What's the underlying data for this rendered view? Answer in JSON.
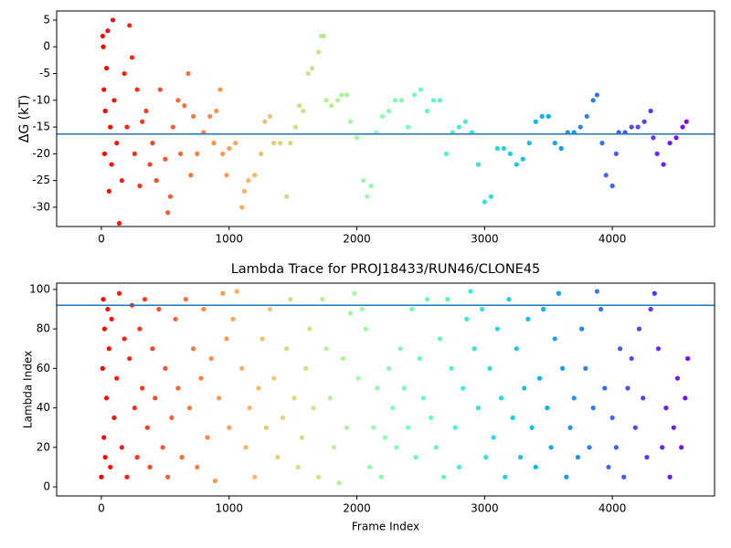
{
  "chart_data": [
    {
      "type": "scatter",
      "ylabel": "ΔG (kT)",
      "colormap": "rainbow_r",
      "xlim": [
        -350,
        4800
      ],
      "xticks": [
        0,
        1000,
        2000,
        3000,
        4000
      ],
      "ylim": [
        -33.6,
        6.7
      ],
      "yticks": [
        -30,
        -25,
        -20,
        -15,
        -10,
        -5,
        0,
        5
      ],
      "hline": -16.3,
      "hline_color": "#1f77b4",
      "x": [
        10,
        15,
        20,
        25,
        30,
        40,
        50,
        60,
        70,
        80,
        90,
        100,
        120,
        140,
        160,
        180,
        200,
        220,
        240,
        260,
        280,
        300,
        320,
        350,
        380,
        400,
        430,
        460,
        500,
        520,
        540,
        560,
        600,
        620,
        650,
        680,
        700,
        720,
        750,
        800,
        850,
        880,
        900,
        930,
        950,
        980,
        1000,
        1050,
        1100,
        1120,
        1150,
        1200,
        1250,
        1280,
        1320,
        1350,
        1400,
        1450,
        1480,
        1520,
        1550,
        1580,
        1620,
        1650,
        1700,
        1720,
        1740,
        1760,
        1800,
        1850,
        1880,
        1920,
        1950,
        2000,
        2050,
        2080,
        2110,
        2150,
        2200,
        2250,
        2300,
        2350,
        2400,
        2450,
        2500,
        2550,
        2600,
        2650,
        2700,
        2750,
        2800,
        2850,
        2900,
        2950,
        3000,
        3050,
        3100,
        3150,
        3200,
        3250,
        3300,
        3350,
        3400,
        3450,
        3500,
        3550,
        3600,
        3650,
        3700,
        3750,
        3800,
        3850,
        3880,
        3920,
        3950,
        4000,
        4030,
        4050,
        4100,
        4150,
        4200,
        4250,
        4300,
        4320,
        4350,
        4400,
        4450,
        4500,
        4550,
        4580
      ],
      "values": [
        2,
        0,
        -8,
        -20,
        -12,
        -4,
        3,
        -27,
        -15,
        -22,
        5,
        -10,
        -18,
        -33,
        -25,
        -5,
        -15,
        4,
        -2,
        -20,
        -8,
        -26,
        -14,
        -12,
        -22,
        -18,
        -25,
        -8,
        -21,
        -31,
        -28,
        -15,
        -10,
        -20,
        -11,
        -5,
        -24,
        -13,
        -20,
        -16,
        -13,
        -18,
        -12,
        -8,
        -20,
        -24,
        -19,
        -18,
        -30,
        -27,
        -25,
        -24,
        -20,
        -14,
        -13,
        -18,
        -18,
        -28,
        -18,
        -15,
        -11,
        -12,
        -5,
        -4,
        -1,
        2,
        2,
        -10,
        -11,
        -10,
        -9,
        -9,
        -14,
        -17,
        -25,
        -28,
        -26,
        -16,
        -13,
        -12,
        -10,
        -10,
        -15,
        -9,
        -8,
        -12,
        -10,
        -10,
        -20,
        -16,
        -15,
        -14,
        -16,
        -22,
        -29,
        -28,
        -19,
        -19,
        -20,
        -22,
        -21,
        -18,
        -14,
        -13,
        -13,
        -18,
        -19,
        -16,
        -16,
        -15,
        -13,
        -10,
        -9,
        -18,
        -24,
        -26,
        -20,
        -16,
        -16,
        -15,
        -15,
        -14,
        -12,
        -17,
        -20,
        -22,
        -18,
        -17,
        -15,
        -14
      ]
    },
    {
      "type": "scatter",
      "title": "Lambda Trace for PROJ18433/RUN46/CLONE45",
      "xlabel": "Frame Index",
      "ylabel": "Lambda Index",
      "colormap": "rainbow_r",
      "xlim": [
        -350,
        4800
      ],
      "xticks": [
        0,
        1000,
        2000,
        3000,
        4000
      ],
      "ylim": [
        -4.6,
        103.2
      ],
      "yticks": [
        0,
        20,
        40,
        60,
        80,
        100
      ],
      "hline": 92,
      "hline_color": "#1f77b4",
      "x": [
        0,
        10,
        15,
        20,
        25,
        30,
        40,
        50,
        60,
        70,
        80,
        100,
        120,
        140,
        160,
        180,
        200,
        220,
        240,
        260,
        280,
        300,
        320,
        340,
        360,
        380,
        400,
        420,
        450,
        480,
        500,
        520,
        550,
        580,
        600,
        630,
        660,
        690,
        720,
        750,
        780,
        800,
        830,
        860,
        890,
        920,
        950,
        980,
        1000,
        1030,
        1060,
        1100,
        1130,
        1160,
        1200,
        1230,
        1260,
        1290,
        1320,
        1350,
        1380,
        1420,
        1450,
        1480,
        1510,
        1540,
        1570,
        1600,
        1630,
        1660,
        1700,
        1730,
        1760,
        1790,
        1820,
        1860,
        1890,
        1920,
        1950,
        1980,
        2010,
        2040,
        2070,
        2100,
        2130,
        2160,
        2190,
        2220,
        2250,
        2280,
        2310,
        2340,
        2370,
        2400,
        2430,
        2460,
        2490,
        2520,
        2550,
        2580,
        2620,
        2650,
        2680,
        2710,
        2740,
        2770,
        2800,
        2830,
        2860,
        2890,
        2920,
        2950,
        2980,
        3010,
        3040,
        3070,
        3100,
        3130,
        3160,
        3190,
        3220,
        3250,
        3280,
        3310,
        3340,
        3370,
        3400,
        3430,
        3460,
        3490,
        3520,
        3550,
        3580,
        3610,
        3640,
        3670,
        3700,
        3730,
        3760,
        3790,
        3820,
        3850,
        3880,
        3910,
        3940,
        3970,
        4000,
        4030,
        4060,
        4090,
        4120,
        4150,
        4180,
        4210,
        4240,
        4270,
        4300,
        4330,
        4360,
        4390,
        4420,
        4450,
        4480,
        4510,
        4540,
        4570,
        4590
      ],
      "values": [
        5,
        60,
        95,
        25,
        80,
        15,
        45,
        90,
        70,
        10,
        85,
        35,
        55,
        98,
        20,
        75,
        5,
        65,
        92,
        40,
        15,
        80,
        50,
        95,
        30,
        10,
        70,
        45,
        90,
        20,
        60,
        5,
        35,
        85,
        50,
        15,
        95,
        40,
        70,
        10,
        55,
        90,
        25,
        65,
        3,
        45,
        98,
        75,
        30,
        85,
        99,
        60,
        20,
        40,
        5,
        50,
        75,
        30,
        90,
        55,
        15,
        35,
        70,
        95,
        45,
        10,
        25,
        60,
        80,
        40,
        5,
        95,
        70,
        45,
        20,
        2,
        65,
        30,
        88,
        98,
        55,
        90,
        80,
        10,
        30,
        50,
        5,
        25,
        60,
        40,
        20,
        70,
        50,
        30,
        90,
        15,
        65,
        45,
        95,
        35,
        20,
        75,
        5,
        95,
        60,
        30,
        10,
        50,
        85,
        99,
        70,
        40,
        90,
        15,
        60,
        25,
        80,
        45,
        5,
        95,
        35,
        70,
        15,
        50,
        85,
        30,
        10,
        55,
        90,
        40,
        20,
        75,
        98,
        60,
        5,
        30,
        45,
        15,
        80,
        60,
        20,
        40,
        99,
        90,
        50,
        10,
        35,
        20,
        70,
        5,
        50,
        65,
        30,
        80,
        45,
        15,
        90,
        98,
        70,
        20,
        40,
        5,
        30,
        55,
        20,
        45,
        65
      ]
    }
  ]
}
